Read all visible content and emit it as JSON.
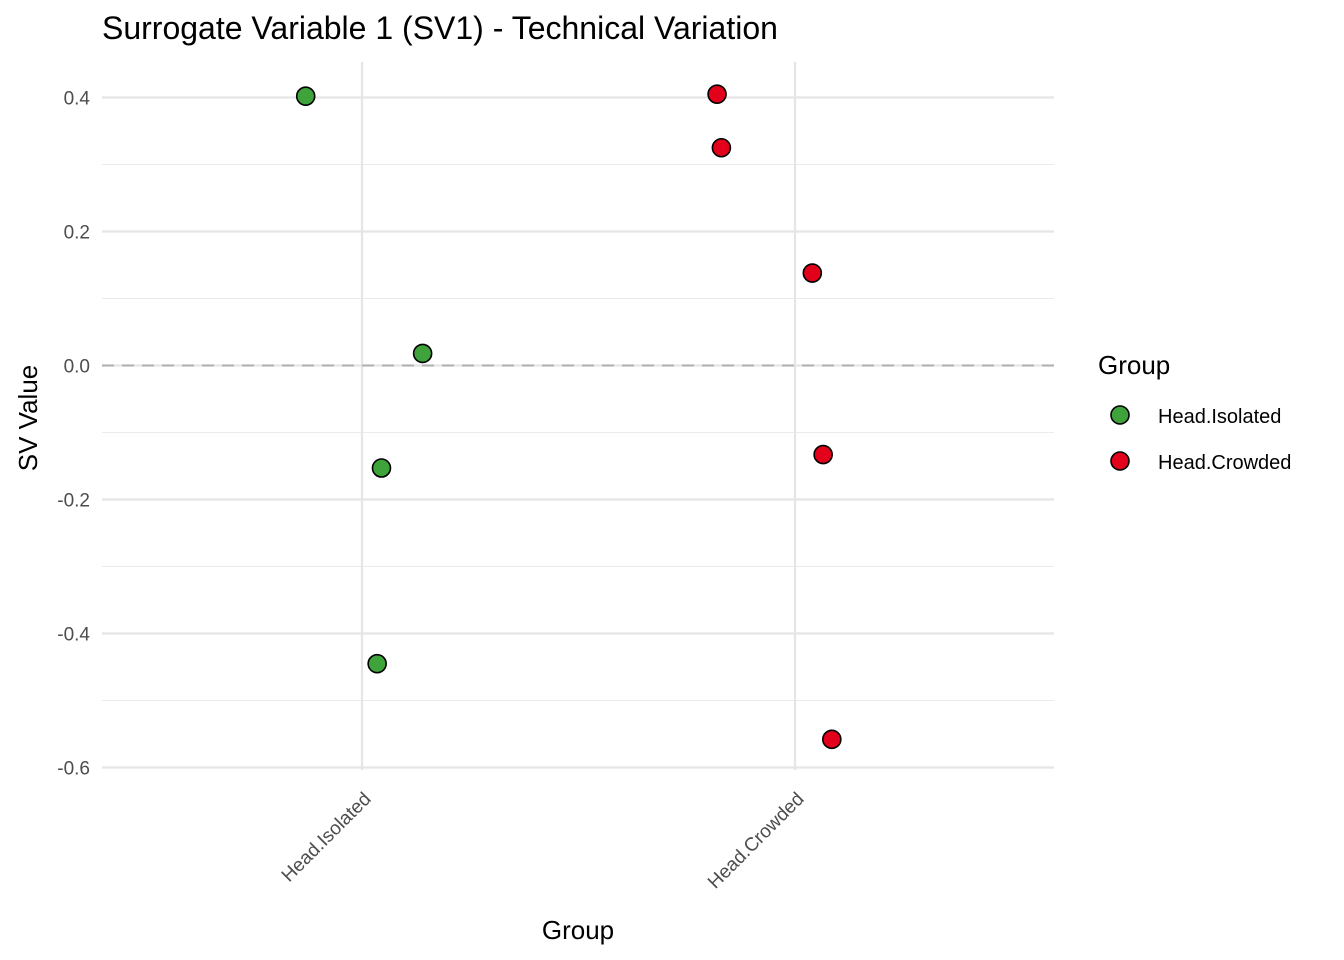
{
  "chart_data": {
    "type": "scatter",
    "title": "Surrogate Variable 1 (SV1) - Technical Variation",
    "xlabel": "Group",
    "ylabel": "SV Value",
    "categories": [
      "Head.Isolated",
      "Head.Crowded"
    ],
    "ylim": [
      -0.6,
      0.4
    ],
    "yticks": [
      0.4,
      0.2,
      0.0,
      -0.2,
      -0.4,
      -0.6
    ],
    "ytick_labels": [
      "0.4",
      "0.2",
      "0.0",
      "-0.2",
      "-0.4",
      "-0.6"
    ],
    "reference_line": 0.0,
    "grid": true,
    "legend": {
      "title": "Group",
      "position": "right",
      "entries": [
        "Head.Isolated",
        "Head.Crowded"
      ]
    },
    "colors": {
      "Head.Isolated": "#3fa33c",
      "Head.Crowded": "#e2001a"
    },
    "series": [
      {
        "name": "Head.Isolated",
        "points": [
          {
            "jitter": -0.13,
            "y": 0.402
          },
          {
            "jitter": 0.14,
            "y": 0.018
          },
          {
            "jitter": 0.045,
            "y": -0.153
          },
          {
            "jitter": 0.035,
            "y": -0.445
          }
        ]
      },
      {
        "name": "Head.Crowded",
        "points": [
          {
            "jitter": -0.18,
            "y": 0.405
          },
          {
            "jitter": -0.17,
            "y": 0.325
          },
          {
            "jitter": 0.04,
            "y": 0.138
          },
          {
            "jitter": 0.065,
            "y": -0.133
          },
          {
            "jitter": 0.085,
            "y": -0.558
          }
        ]
      }
    ]
  }
}
